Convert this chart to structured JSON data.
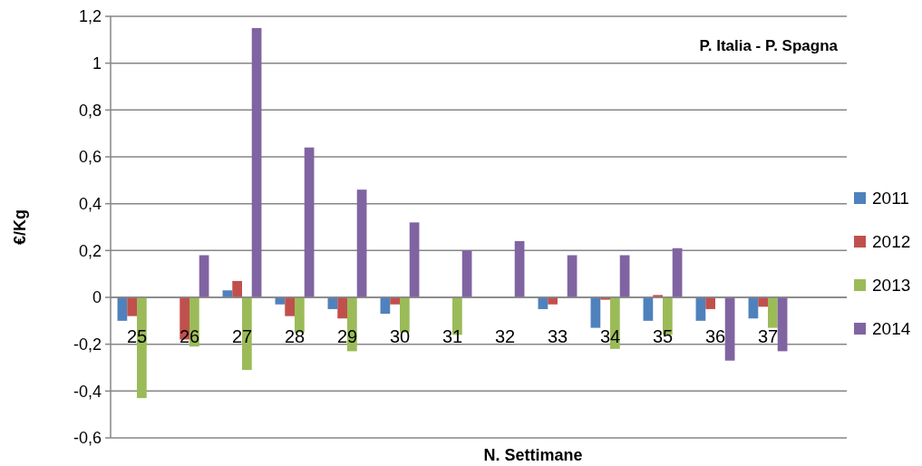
{
  "chart_data": {
    "type": "bar",
    "title": "P. Italia - P. Spagna",
    "xlabel": "N. Settimane",
    "ylabel": "€/Kg",
    "categories": [
      "25",
      "26",
      "27",
      "28",
      "29",
      "30",
      "31",
      "32",
      "33",
      "34",
      "35",
      "36",
      "37",
      null
    ],
    "series": [
      {
        "name": "2011",
        "color": "#4f81bd",
        "values": [
          -0.1,
          null,
          0.03,
          -0.03,
          -0.05,
          -0.07,
          null,
          null,
          -0.05,
          -0.13,
          -0.1,
          -0.1,
          -0.09,
          null
        ]
      },
      {
        "name": "2012",
        "color": "#c0504d",
        "values": [
          -0.08,
          -0.18,
          0.07,
          -0.08,
          -0.09,
          -0.03,
          null,
          null,
          -0.03,
          -0.01,
          0.01,
          -0.05,
          -0.04,
          null
        ]
      },
      {
        "name": "2013",
        "color": "#9bbb59",
        "values": [
          -0.43,
          -0.21,
          -0.31,
          -0.15,
          -0.23,
          -0.15,
          -0.16,
          null,
          null,
          -0.22,
          -0.16,
          null,
          -0.13,
          null
        ]
      },
      {
        "name": "2014",
        "color": "#8064a2",
        "values": [
          null,
          0.18,
          1.15,
          0.64,
          0.46,
          0.32,
          0.2,
          0.24,
          0.18,
          0.18,
          0.21,
          -0.27,
          -0.23,
          null
        ]
      }
    ],
    "ylim": [
      -0.6,
      1.2
    ],
    "yticks": [
      {
        "value": -0.6,
        "label": "-0,6"
      },
      {
        "value": -0.4,
        "label": "-0,4"
      },
      {
        "value": -0.2,
        "label": "-0,2"
      },
      0,
      {
        "value": 0.2,
        "label": "0,2"
      },
      {
        "value": 0.4,
        "label": "0,4"
      },
      {
        "value": 0.6,
        "label": "0,6"
      },
      {
        "value": 0.8,
        "label": "0,8"
      },
      1,
      {
        "value": 1.2,
        "label": "1,2"
      }
    ],
    "grid": "y",
    "legend": "right"
  }
}
